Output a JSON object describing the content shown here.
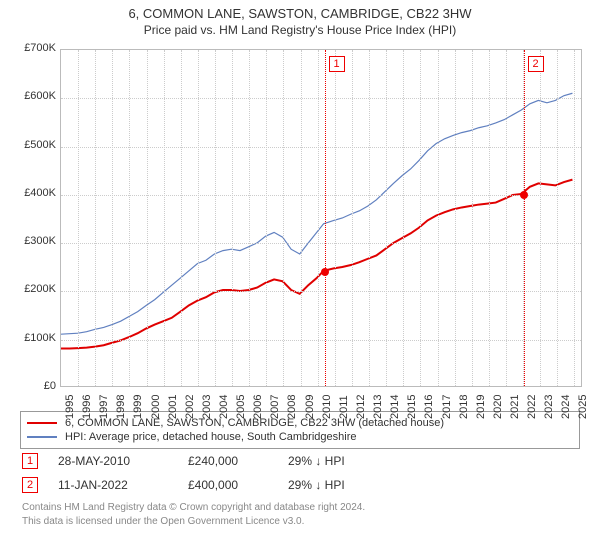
{
  "title": "6, COMMON LANE, SAWSTON, CAMBRIDGE, CB22 3HW",
  "subtitle": "Price paid vs. HM Land Registry's House Price Index (HPI)",
  "chart": {
    "type": "line",
    "background_color": "#ffffff",
    "grid_color": "#cccccc",
    "border_color": "#bbbbbb",
    "title_fontsize": 13,
    "subtitle_fontsize": 12,
    "axis_fontsize": 11,
    "y": {
      "min": 0,
      "max": 700000,
      "step": 100000,
      "ticks": [
        "£0",
        "£100K",
        "£200K",
        "£300K",
        "£400K",
        "£500K",
        "£600K",
        "£700K"
      ]
    },
    "x": {
      "min": 1995,
      "max": 2025.5,
      "step": 1,
      "ticks": [
        "1995",
        "1996",
        "1997",
        "1998",
        "1999",
        "2000",
        "2001",
        "2002",
        "2003",
        "2004",
        "2005",
        "2006",
        "2007",
        "2008",
        "2009",
        "2010",
        "2011",
        "2012",
        "2013",
        "2014",
        "2015",
        "2016",
        "2017",
        "2018",
        "2019",
        "2020",
        "2021",
        "2022",
        "2023",
        "2024",
        "2025"
      ]
    },
    "series": [
      {
        "name": "property",
        "label": "6, COMMON LANE, SAWSTON, CAMBRIDGE, CB22 3HW (detached house)",
        "color": "#e00000",
        "width": 2,
        "points": [
          [
            1995,
            78000
          ],
          [
            1995.5,
            78000
          ],
          [
            1996,
            79000
          ],
          [
            1996.5,
            80000
          ],
          [
            1997,
            82000
          ],
          [
            1997.5,
            85000
          ],
          [
            1998,
            90000
          ],
          [
            1998.5,
            95000
          ],
          [
            1999,
            102000
          ],
          [
            1999.5,
            110000
          ],
          [
            2000,
            120000
          ],
          [
            2000.5,
            128000
          ],
          [
            2001,
            135000
          ],
          [
            2001.5,
            142000
          ],
          [
            2002,
            155000
          ],
          [
            2002.5,
            168000
          ],
          [
            2003,
            178000
          ],
          [
            2003.5,
            185000
          ],
          [
            2004,
            195000
          ],
          [
            2004.5,
            200000
          ],
          [
            2005,
            200000
          ],
          [
            2005.5,
            198000
          ],
          [
            2006,
            200000
          ],
          [
            2006.5,
            205000
          ],
          [
            2007,
            215000
          ],
          [
            2007.5,
            222000
          ],
          [
            2008,
            218000
          ],
          [
            2008.5,
            200000
          ],
          [
            2009,
            192000
          ],
          [
            2009.5,
            210000
          ],
          [
            2010,
            225000
          ],
          [
            2010.4,
            240000
          ],
          [
            2011,
            245000
          ],
          [
            2011.5,
            248000
          ],
          [
            2012,
            252000
          ],
          [
            2012.5,
            258000
          ],
          [
            2013,
            265000
          ],
          [
            2013.5,
            272000
          ],
          [
            2014,
            285000
          ],
          [
            2014.5,
            298000
          ],
          [
            2015,
            308000
          ],
          [
            2015.5,
            318000
          ],
          [
            2016,
            330000
          ],
          [
            2016.5,
            345000
          ],
          [
            2017,
            355000
          ],
          [
            2017.5,
            362000
          ],
          [
            2018,
            368000
          ],
          [
            2018.5,
            372000
          ],
          [
            2019,
            375000
          ],
          [
            2019.5,
            378000
          ],
          [
            2020,
            380000
          ],
          [
            2020.5,
            382000
          ],
          [
            2021,
            390000
          ],
          [
            2021.5,
            398000
          ],
          [
            2022,
            400000
          ],
          [
            2022.5,
            415000
          ],
          [
            2023,
            422000
          ],
          [
            2023.5,
            420000
          ],
          [
            2024,
            418000
          ],
          [
            2024.5,
            425000
          ],
          [
            2025,
            430000
          ]
        ]
      },
      {
        "name": "hpi",
        "label": "HPI: Average price, detached house, South Cambridgeshire",
        "color": "#6080c0",
        "width": 1.2,
        "points": [
          [
            1995,
            108000
          ],
          [
            1995.5,
            109000
          ],
          [
            1996,
            110000
          ],
          [
            1996.5,
            113000
          ],
          [
            1997,
            118000
          ],
          [
            1997.5,
            122000
          ],
          [
            1998,
            128000
          ],
          [
            1998.5,
            135000
          ],
          [
            1999,
            145000
          ],
          [
            1999.5,
            155000
          ],
          [
            2000,
            168000
          ],
          [
            2000.5,
            180000
          ],
          [
            2001,
            195000
          ],
          [
            2001.5,
            210000
          ],
          [
            2002,
            225000
          ],
          [
            2002.5,
            240000
          ],
          [
            2003,
            255000
          ],
          [
            2003.5,
            262000
          ],
          [
            2004,
            275000
          ],
          [
            2004.5,
            282000
          ],
          [
            2005,
            285000
          ],
          [
            2005.5,
            282000
          ],
          [
            2006,
            290000
          ],
          [
            2006.5,
            298000
          ],
          [
            2007,
            312000
          ],
          [
            2007.5,
            320000
          ],
          [
            2008,
            310000
          ],
          [
            2008.5,
            285000
          ],
          [
            2009,
            275000
          ],
          [
            2009.5,
            298000
          ],
          [
            2010,
            320000
          ],
          [
            2010.4,
            338000
          ],
          [
            2011,
            345000
          ],
          [
            2011.5,
            350000
          ],
          [
            2012,
            358000
          ],
          [
            2012.5,
            365000
          ],
          [
            2013,
            375000
          ],
          [
            2013.5,
            388000
          ],
          [
            2014,
            405000
          ],
          [
            2014.5,
            422000
          ],
          [
            2015,
            438000
          ],
          [
            2015.5,
            452000
          ],
          [
            2016,
            470000
          ],
          [
            2016.5,
            490000
          ],
          [
            2017,
            505000
          ],
          [
            2017.5,
            515000
          ],
          [
            2018,
            522000
          ],
          [
            2018.5,
            528000
          ],
          [
            2019,
            532000
          ],
          [
            2019.5,
            538000
          ],
          [
            2020,
            542000
          ],
          [
            2020.5,
            548000
          ],
          [
            2021,
            555000
          ],
          [
            2021.5,
            565000
          ],
          [
            2022,
            575000
          ],
          [
            2022.5,
            588000
          ],
          [
            2023,
            595000
          ],
          [
            2023.5,
            590000
          ],
          [
            2024,
            595000
          ],
          [
            2024.5,
            605000
          ],
          [
            2025,
            610000
          ]
        ]
      }
    ],
    "markers": [
      {
        "id": "1",
        "x": 2010.4,
        "y": 240000
      },
      {
        "id": "2",
        "x": 2022.03,
        "y": 400000
      }
    ]
  },
  "legend": {
    "border_color": "#999999"
  },
  "sales": [
    {
      "id": "1",
      "date": "28-MAY-2010",
      "price": "£240,000",
      "diff": "29% ↓ HPI"
    },
    {
      "id": "2",
      "date": "11-JAN-2022",
      "price": "£400,000",
      "diff": "29% ↓ HPI"
    }
  ],
  "footer": {
    "line1": "Contains HM Land Registry data © Crown copyright and database right 2024.",
    "line2": "This data is licensed under the Open Government Licence v3.0."
  }
}
